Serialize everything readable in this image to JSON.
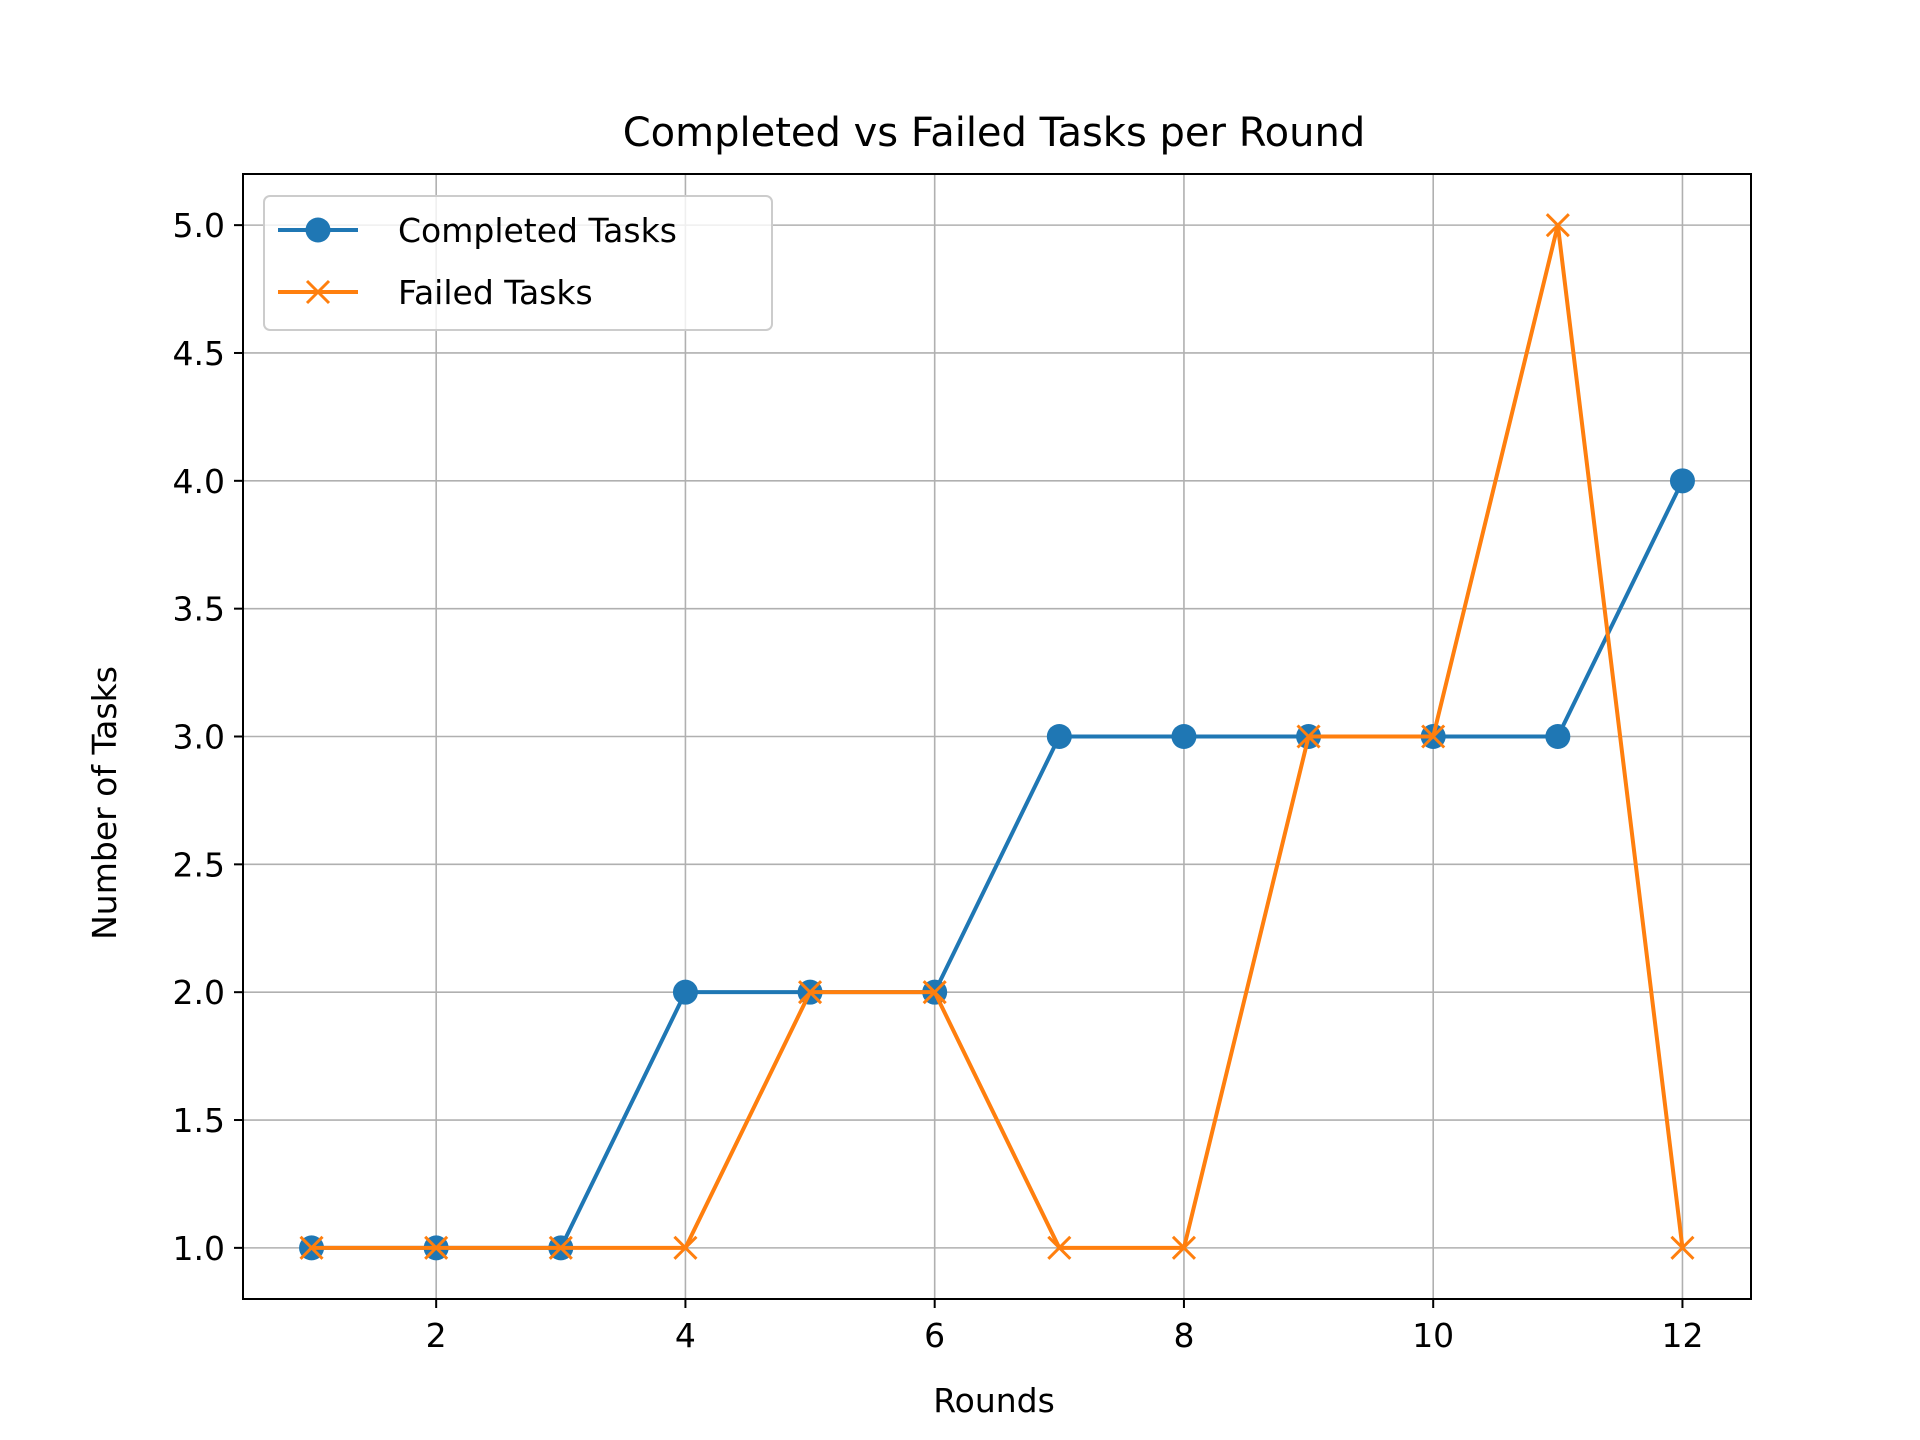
{
  "chart_data": {
    "type": "line",
    "title": "Completed vs Failed Tasks per Round",
    "xlabel": "Rounds",
    "ylabel": "Number of Tasks",
    "x": [
      1,
      2,
      3,
      4,
      5,
      6,
      7,
      8,
      9,
      10,
      11,
      12
    ],
    "xlim": [
      0.45,
      12.55
    ],
    "ylim": [
      0.8,
      5.2
    ],
    "xticks": [
      2,
      4,
      6,
      8,
      10,
      12
    ],
    "xtick_labels": [
      "2",
      "4",
      "6",
      "8",
      "10",
      "12"
    ],
    "yticks": [
      1.0,
      1.5,
      2.0,
      2.5,
      3.0,
      3.5,
      4.0,
      4.5,
      5.0
    ],
    "ytick_labels": [
      "1.0",
      "1.5",
      "2.0",
      "2.5",
      "3.0",
      "3.5",
      "4.0",
      "4.5",
      "5.0"
    ],
    "grid": true,
    "legend_position": "upper-left",
    "series": [
      {
        "name": "Completed Tasks",
        "marker": "circle",
        "color": "#1f77b4",
        "values": [
          1,
          1,
          1,
          2,
          2,
          2,
          3,
          3,
          3,
          3,
          3,
          4
        ]
      },
      {
        "name": "Failed Tasks",
        "marker": "x",
        "color": "#ff7f0e",
        "values": [
          1,
          1,
          1,
          1,
          2,
          2,
          1,
          1,
          3,
          3,
          5,
          1
        ]
      }
    ]
  }
}
